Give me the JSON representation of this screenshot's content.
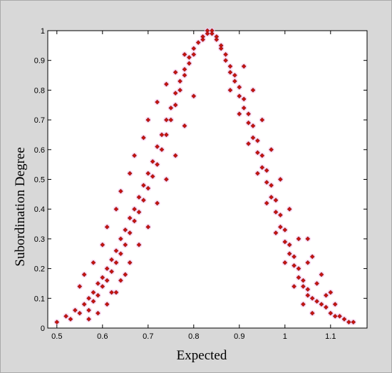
{
  "chart_data": {
    "type": "scatter",
    "title": "",
    "xlabel": "Expected",
    "ylabel": "Subordination Degree",
    "xlim": [
      0.48,
      1.18
    ],
    "ylim": [
      0,
      1
    ],
    "x_ticks": [
      0.5,
      0.6,
      0.7,
      0.8,
      0.9,
      1,
      1.1
    ],
    "x_tick_labels": [
      "0.5",
      "0.6",
      "0.7",
      "0.8",
      "0.9",
      "1",
      "1.1"
    ],
    "y_ticks": [
      0,
      0.1,
      0.2,
      0.3,
      0.4,
      0.5,
      0.6,
      0.7,
      0.8,
      0.9,
      1
    ],
    "y_tick_labels": [
      "0",
      "0.1",
      "0.2",
      "0.3",
      "0.4",
      "0.5",
      "0.6",
      "0.7",
      "0.8",
      "0.9",
      "1"
    ],
    "grid": false,
    "legend": "none",
    "colors": {
      "outer_background": "#d8d8d8",
      "plot_background": "#ffffff",
      "marker": "#cc1111",
      "marker_edge": "#8b1a10",
      "halo": "#f5c6ee"
    },
    "series": [
      {
        "points": [
          [
            0.5,
            0.02
          ],
          [
            0.52,
            0.04
          ],
          [
            0.53,
            0.03
          ],
          [
            0.54,
            0.06
          ],
          [
            0.55,
            0.05
          ],
          [
            0.56,
            0.08
          ],
          [
            0.57,
            0.1
          ],
          [
            0.57,
            0.06
          ],
          [
            0.58,
            0.12
          ],
          [
            0.58,
            0.09
          ],
          [
            0.59,
            0.15
          ],
          [
            0.59,
            0.11
          ],
          [
            0.6,
            0.17
          ],
          [
            0.6,
            0.14
          ],
          [
            0.61,
            0.2
          ],
          [
            0.61,
            0.16
          ],
          [
            0.62,
            0.23
          ],
          [
            0.62,
            0.19
          ],
          [
            0.63,
            0.26
          ],
          [
            0.63,
            0.22
          ],
          [
            0.64,
            0.3
          ],
          [
            0.64,
            0.25
          ],
          [
            0.65,
            0.33
          ],
          [
            0.65,
            0.28
          ],
          [
            0.66,
            0.37
          ],
          [
            0.66,
            0.32
          ],
          [
            0.67,
            0.4
          ],
          [
            0.67,
            0.36
          ],
          [
            0.68,
            0.44
          ],
          [
            0.68,
            0.39
          ],
          [
            0.69,
            0.48
          ],
          [
            0.69,
            0.43
          ],
          [
            0.7,
            0.52
          ],
          [
            0.7,
            0.47
          ],
          [
            0.71,
            0.56
          ],
          [
            0.71,
            0.51
          ],
          [
            0.72,
            0.61
          ],
          [
            0.72,
            0.55
          ],
          [
            0.73,
            0.65
          ],
          [
            0.73,
            0.6
          ],
          [
            0.74,
            0.7
          ],
          [
            0.74,
            0.65
          ],
          [
            0.75,
            0.74
          ],
          [
            0.75,
            0.7
          ],
          [
            0.76,
            0.79
          ],
          [
            0.76,
            0.75
          ],
          [
            0.77,
            0.83
          ],
          [
            0.77,
            0.8
          ],
          [
            0.78,
            0.87
          ],
          [
            0.78,
            0.85
          ],
          [
            0.79,
            0.91
          ],
          [
            0.79,
            0.89
          ],
          [
            0.8,
            0.94
          ],
          [
            0.8,
            0.92
          ],
          [
            0.81,
            0.96
          ],
          [
            0.82,
            0.98
          ],
          [
            0.82,
            0.97
          ],
          [
            0.83,
            1.0
          ],
          [
            0.83,
            0.99
          ],
          [
            0.84,
            1.0
          ],
          [
            0.84,
            0.99
          ],
          [
            0.85,
            0.98
          ],
          [
            0.85,
            0.97
          ],
          [
            0.86,
            0.95
          ],
          [
            0.86,
            0.94
          ],
          [
            0.87,
            0.92
          ],
          [
            0.87,
            0.9
          ],
          [
            0.88,
            0.88
          ],
          [
            0.88,
            0.86
          ],
          [
            0.89,
            0.85
          ],
          [
            0.89,
            0.83
          ],
          [
            0.9,
            0.81
          ],
          [
            0.9,
            0.78
          ],
          [
            0.91,
            0.77
          ],
          [
            0.91,
            0.74
          ],
          [
            0.92,
            0.72
          ],
          [
            0.92,
            0.69
          ],
          [
            0.93,
            0.68
          ],
          [
            0.93,
            0.64
          ],
          [
            0.94,
            0.63
          ],
          [
            0.94,
            0.59
          ],
          [
            0.95,
            0.58
          ],
          [
            0.95,
            0.54
          ],
          [
            0.96,
            0.53
          ],
          [
            0.96,
            0.49
          ],
          [
            0.97,
            0.48
          ],
          [
            0.97,
            0.44
          ],
          [
            0.98,
            0.43
          ],
          [
            0.98,
            0.39
          ],
          [
            0.99,
            0.38
          ],
          [
            0.99,
            0.34
          ],
          [
            1.0,
            0.33
          ],
          [
            1.0,
            0.29
          ],
          [
            1.01,
            0.28
          ],
          [
            1.01,
            0.25
          ],
          [
            1.02,
            0.24
          ],
          [
            1.02,
            0.21
          ],
          [
            1.03,
            0.2
          ],
          [
            1.03,
            0.17
          ],
          [
            1.04,
            0.16
          ],
          [
            1.04,
            0.14
          ],
          [
            1.05,
            0.13
          ],
          [
            1.05,
            0.11
          ],
          [
            1.06,
            0.1
          ],
          [
            1.07,
            0.09
          ],
          [
            1.08,
            0.08
          ],
          [
            1.09,
            0.07
          ],
          [
            1.1,
            0.05
          ],
          [
            1.11,
            0.04
          ],
          [
            1.12,
            0.04
          ],
          [
            1.13,
            0.03
          ],
          [
            1.14,
            0.02
          ],
          [
            1.15,
            0.02
          ],
          [
            0.55,
            0.14
          ],
          [
            0.56,
            0.18
          ],
          [
            0.58,
            0.22
          ],
          [
            0.6,
            0.28
          ],
          [
            0.61,
            0.34
          ],
          [
            0.63,
            0.4
          ],
          [
            0.64,
            0.46
          ],
          [
            0.66,
            0.52
          ],
          [
            0.67,
            0.58
          ],
          [
            0.69,
            0.64
          ],
          [
            0.7,
            0.7
          ],
          [
            0.72,
            0.76
          ],
          [
            0.74,
            0.82
          ],
          [
            0.76,
            0.86
          ],
          [
            0.78,
            0.92
          ],
          [
            0.62,
            0.12
          ],
          [
            0.64,
            0.16
          ],
          [
            0.66,
            0.22
          ],
          [
            0.68,
            0.28
          ],
          [
            0.7,
            0.34
          ],
          [
            0.72,
            0.42
          ],
          [
            0.74,
            0.5
          ],
          [
            0.76,
            0.58
          ],
          [
            0.78,
            0.68
          ],
          [
            0.8,
            0.78
          ],
          [
            0.88,
            0.8
          ],
          [
            0.9,
            0.72
          ],
          [
            0.92,
            0.62
          ],
          [
            0.94,
            0.52
          ],
          [
            0.96,
            0.42
          ],
          [
            0.98,
            0.32
          ],
          [
            1.0,
            0.22
          ],
          [
            1.02,
            0.14
          ],
          [
            1.04,
            0.08
          ],
          [
            1.06,
            0.05
          ],
          [
            0.91,
            0.88
          ],
          [
            0.93,
            0.8
          ],
          [
            0.95,
            0.7
          ],
          [
            0.97,
            0.6
          ],
          [
            0.99,
            0.5
          ],
          [
            1.01,
            0.4
          ],
          [
            1.03,
            0.3
          ],
          [
            1.05,
            0.22
          ],
          [
            1.07,
            0.15
          ],
          [
            1.09,
            0.11
          ],
          [
            0.57,
            0.03
          ],
          [
            0.59,
            0.05
          ],
          [
            0.61,
            0.08
          ],
          [
            0.63,
            0.12
          ],
          [
            0.65,
            0.18
          ],
          [
            1.08,
            0.18
          ],
          [
            1.1,
            0.12
          ],
          [
            1.11,
            0.08
          ],
          [
            1.06,
            0.24
          ],
          [
            1.05,
            0.3
          ]
        ]
      }
    ]
  }
}
